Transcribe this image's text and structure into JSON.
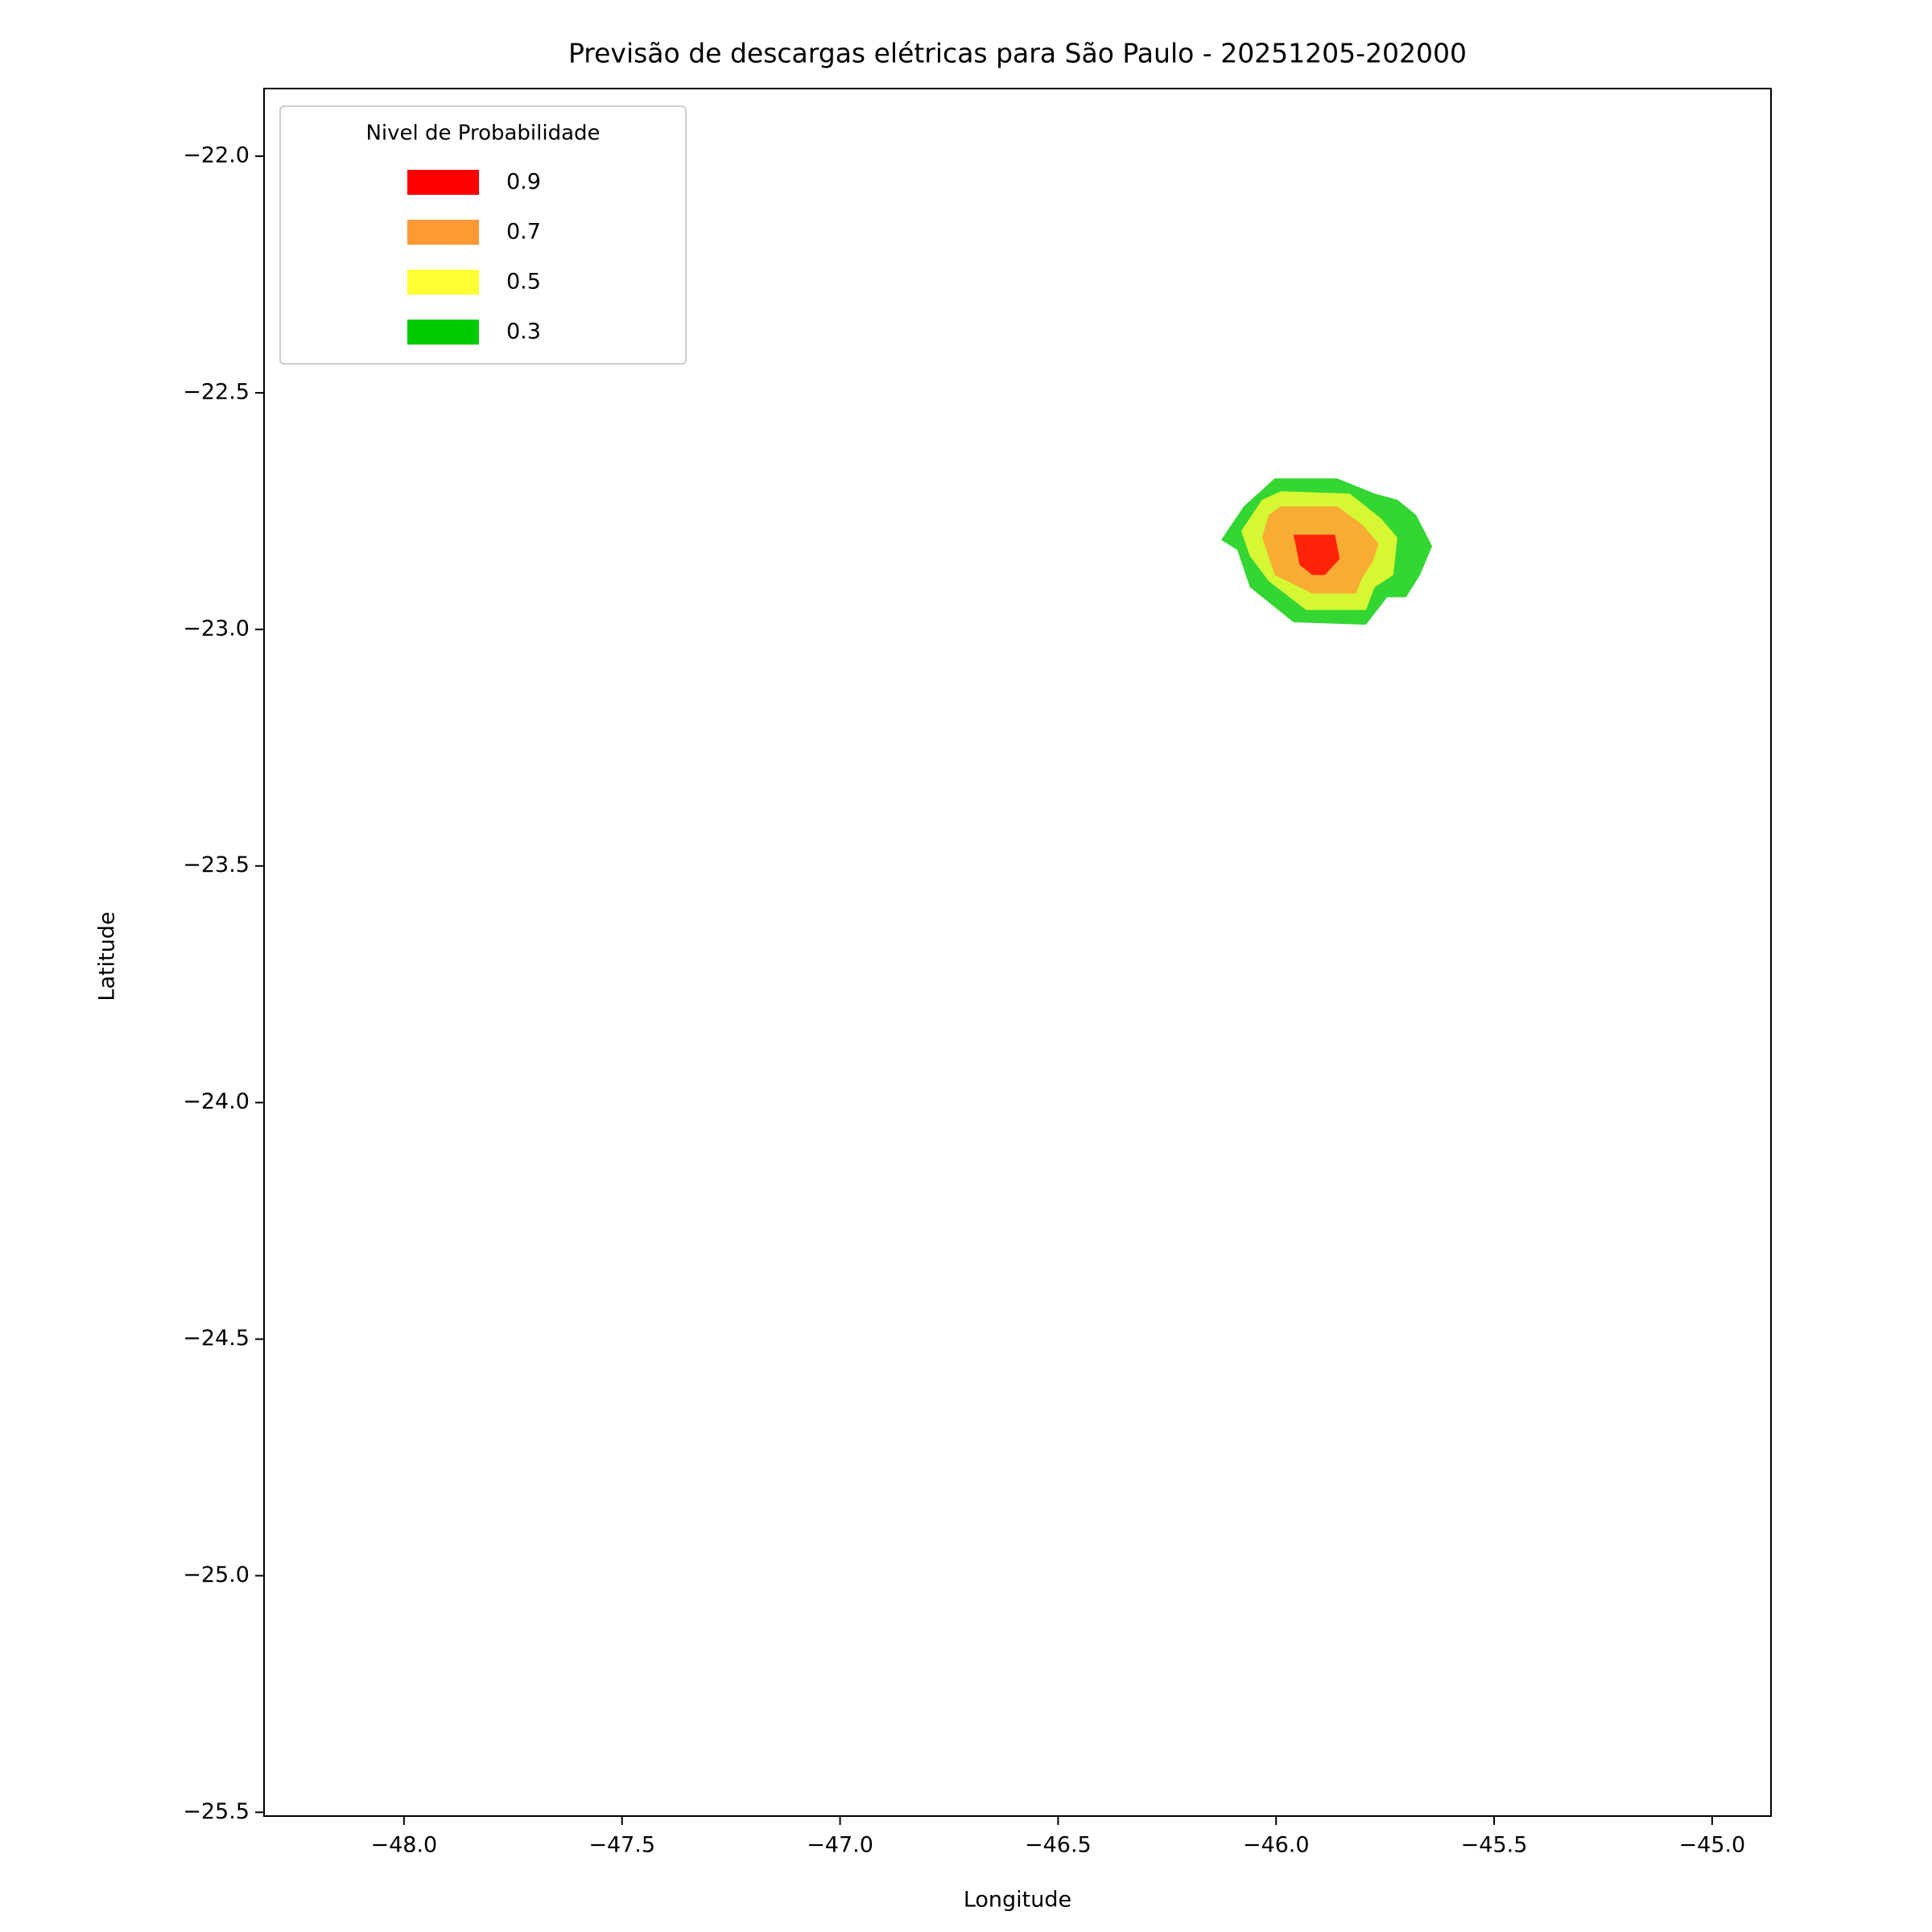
{
  "chart_data": {
    "type": "contour",
    "title": "Previsão de descargas elétricas para São Paulo - 20251205-202000",
    "x_label": "Longitude",
    "y_label": "Latitude",
    "legend_title": "Nivel de Probabilidade",
    "legend": "upper left",
    "alpha": 0.8,
    "xlim": [
      -48.321,
      -44.865
    ],
    "ylim": [
      -25.508,
      -21.857
    ],
    "xticks": [
      {
        "value": -48,
        "label": "−48.0"
      },
      {
        "value": -47.5,
        "label": "−47.5"
      },
      {
        "value": -47,
        "label": "−47.0"
      },
      {
        "value": -46.5,
        "label": "−46.5"
      },
      {
        "value": -46,
        "label": "−46.0"
      },
      {
        "value": -45.5,
        "label": "−45.5"
      },
      {
        "value": -45,
        "label": "−45.0"
      }
    ],
    "yticks": [
      {
        "value": -22,
        "label": "−22.0"
      },
      {
        "value": -22.5,
        "label": "−22.5"
      },
      {
        "value": -23,
        "label": "−23.0"
      },
      {
        "value": -23.5,
        "label": "−23.5"
      },
      {
        "value": -24,
        "label": "−24.0"
      },
      {
        "value": -24.5,
        "label": "−24.5"
      },
      {
        "value": -25,
        "label": "−25.0"
      },
      {
        "value": -25.5,
        "label": "−25.5"
      }
    ],
    "series": [
      {
        "name": "0.9",
        "color": "#ff0000",
        "x": [
          -45.96,
          -45.865,
          -45.854,
          -45.888,
          -45.917,
          -45.946
        ],
        "y": [
          -22.8,
          -22.8,
          -22.851,
          -22.885,
          -22.885,
          -22.864
        ]
      },
      {
        "name": "0.7",
        "color": "#ff9933",
        "x": [
          -46.032,
          -46.017,
          -45.989,
          -45.86,
          -45.802,
          -45.765,
          -45.779,
          -45.802,
          -45.817,
          -45.917,
          -46.003
        ],
        "y": [
          -22.806,
          -22.758,
          -22.74,
          -22.74,
          -22.779,
          -22.819,
          -22.858,
          -22.89,
          -22.924,
          -22.924,
          -22.885
        ]
      },
      {
        "name": "0.5",
        "color": "#ffff33",
        "x": [
          -46.08,
          -46.032,
          -45.989,
          -45.831,
          -45.759,
          -45.722,
          -45.731,
          -45.774,
          -45.794,
          -45.931,
          -46.017,
          -46.06
        ],
        "y": [
          -22.792,
          -22.726,
          -22.708,
          -22.713,
          -22.766,
          -22.806,
          -22.885,
          -22.911,
          -22.959,
          -22.959,
          -22.898,
          -22.845
        ]
      },
      {
        "name": "0.3",
        "color": "#00cc00",
        "x": [
          -46.126,
          -46.074,
          -46.003,
          -45.86,
          -45.774,
          -45.722,
          -45.679,
          -45.642,
          -45.67,
          -45.702,
          -45.745,
          -45.794,
          -45.96,
          -46.06,
          -46.089
        ],
        "y": [
          -22.811,
          -22.74,
          -22.681,
          -22.681,
          -22.713,
          -22.726,
          -22.758,
          -22.824,
          -22.885,
          -22.932,
          -22.932,
          -22.99,
          -22.985,
          -22.911,
          -22.832
        ]
      }
    ]
  }
}
